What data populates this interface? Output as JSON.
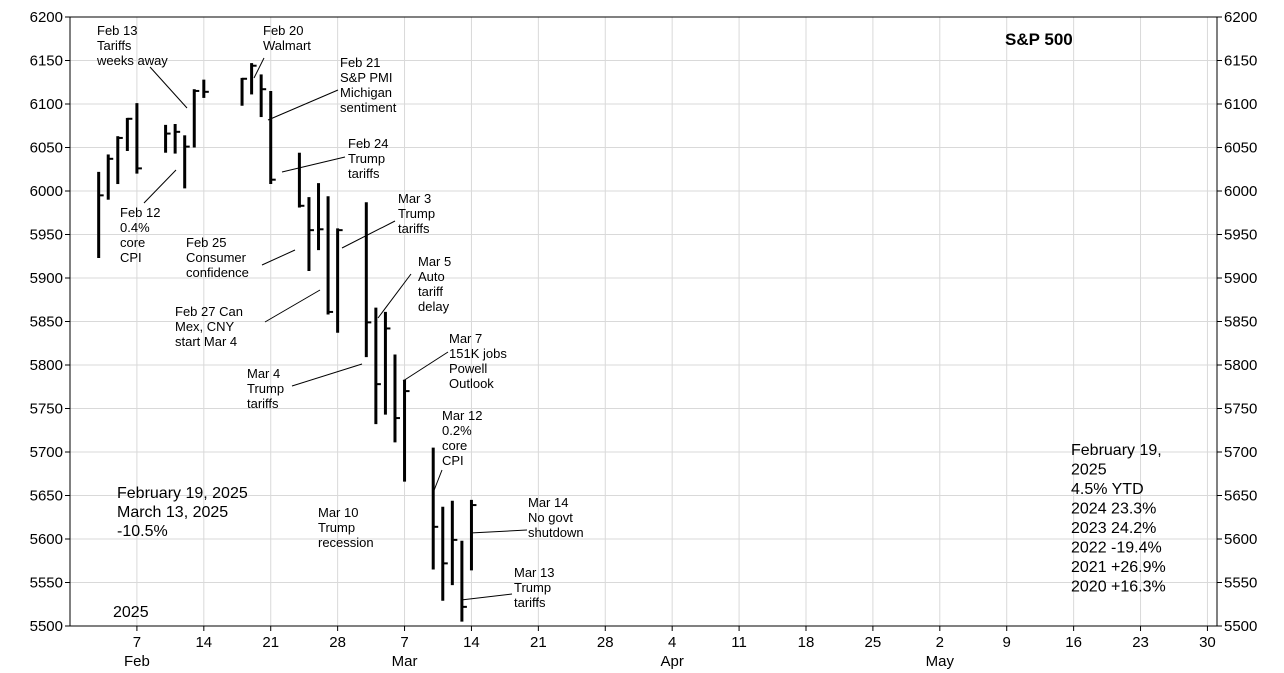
{
  "chart_data": {
    "type": "bar",
    "ohlc_style": "high-low-close",
    "title": "S&P 500",
    "ylim": [
      5500,
      6200
    ],
    "y_ticks": [
      5500,
      5550,
      5600,
      5650,
      5700,
      5750,
      5800,
      5850,
      5900,
      5950,
      6000,
      6050,
      6100,
      6150,
      6200
    ],
    "x_ticks": [
      {
        "day": 7,
        "label": "7",
        "month_label": "Feb"
      },
      {
        "day": 14,
        "label": "14",
        "month_label": ""
      },
      {
        "day": 21,
        "label": "21",
        "month_label": ""
      },
      {
        "day": 28,
        "label": "28",
        "month_label": ""
      },
      {
        "day": 35,
        "label": "7",
        "month_label": "Mar"
      },
      {
        "day": 42,
        "label": "14",
        "month_label": ""
      },
      {
        "day": 49,
        "label": "21",
        "month_label": ""
      },
      {
        "day": 56,
        "label": "28",
        "month_label": ""
      },
      {
        "day": 63,
        "label": "4",
        "month_label": "Apr"
      },
      {
        "day": 70,
        "label": "11",
        "month_label": ""
      },
      {
        "day": 77,
        "label": "18",
        "month_label": ""
      },
      {
        "day": 84,
        "label": "25",
        "month_label": ""
      },
      {
        "day": 91,
        "label": "2",
        "month_label": "May"
      },
      {
        "day": 98,
        "label": "9",
        "month_label": ""
      },
      {
        "day": 105,
        "label": "16",
        "month_label": ""
      },
      {
        "day": 112,
        "label": "23",
        "month_label": ""
      },
      {
        "day": 119,
        "label": "30",
        "month_label": ""
      }
    ],
    "bars": [
      {
        "day": 3,
        "high": 6022,
        "low": 5923,
        "close": 5995
      },
      {
        "day": 4,
        "high": 6042,
        "low": 5990,
        "close": 6037
      },
      {
        "day": 5,
        "high": 6063,
        "low": 6008,
        "close": 6061
      },
      {
        "day": 6,
        "high": 6084,
        "low": 6046,
        "close": 6083
      },
      {
        "day": 7,
        "high": 6101,
        "low": 6020,
        "close": 6026
      },
      {
        "day": 10,
        "high": 6076,
        "low": 6044,
        "close": 6066
      },
      {
        "day": 11,
        "high": 6077,
        "low": 6043,
        "close": 6068
      },
      {
        "day": 12,
        "high": 6064,
        "low": 6003,
        "close": 6051
      },
      {
        "day": 13,
        "high": 6117,
        "low": 6050,
        "close": 6115
      },
      {
        "day": 14,
        "high": 6128,
        "low": 6107,
        "close": 6114
      },
      {
        "day": 18,
        "high": 6130,
        "low": 6098,
        "close": 6129
      },
      {
        "day": 19,
        "high": 6147,
        "low": 6111,
        "close": 6144
      },
      {
        "day": 20,
        "high": 6134,
        "low": 6085,
        "close": 6117
      },
      {
        "day": 21,
        "high": 6115,
        "low": 6008,
        "close": 6013
      },
      {
        "day": 24,
        "high": 6044,
        "low": 5981,
        "close": 5983
      },
      {
        "day": 25,
        "high": 5993,
        "low": 5908,
        "close": 5955
      },
      {
        "day": 26,
        "high": 6009,
        "low": 5932,
        "close": 5956
      },
      {
        "day": 27,
        "high": 5994,
        "low": 5858,
        "close": 5861
      },
      {
        "day": 28,
        "high": 5957,
        "low": 5837,
        "close": 5955
      },
      {
        "day": 31,
        "high": 5987,
        "low": 5809,
        "close": 5849
      },
      {
        "day": 32,
        "high": 5866,
        "low": 5732,
        "close": 5778
      },
      {
        "day": 33,
        "high": 5861,
        "low": 5743,
        "close": 5842
      },
      {
        "day": 34,
        "high": 5812,
        "low": 5711,
        "close": 5739
      },
      {
        "day": 35,
        "high": 5783,
        "low": 5666,
        "close": 5770
      },
      {
        "day": 38,
        "high": 5705,
        "low": 5565,
        "close": 5614
      },
      {
        "day": 39,
        "high": 5637,
        "low": 5529,
        "close": 5572
      },
      {
        "day": 40,
        "high": 5644,
        "low": 5547,
        "close": 5599
      },
      {
        "day": 41,
        "high": 5598,
        "low": 5505,
        "close": 5522
      },
      {
        "day": 42,
        "high": 5645,
        "low": 5564,
        "close": 5639
      }
    ],
    "annotations": [
      {
        "id": "feb13",
        "lines": [
          "Feb 13",
          "Tariffs",
          "weeks away"
        ]
      },
      {
        "id": "feb20",
        "lines": [
          "Feb 20",
          "Walmart"
        ]
      },
      {
        "id": "feb21",
        "lines": [
          "Feb 21",
          "S&P PMI",
          "Michigan",
          "sentiment"
        ]
      },
      {
        "id": "feb24",
        "lines": [
          "Feb 24",
          "Trump",
          "tariffs"
        ]
      },
      {
        "id": "feb12",
        "lines": [
          "Feb 12",
          "0.4%",
          "core",
          "CPI"
        ]
      },
      {
        "id": "feb25",
        "lines": [
          "Feb 25",
          "Consumer",
          "confidence"
        ]
      },
      {
        "id": "mar3",
        "lines": [
          "Mar 3",
          "Trump",
          "tariffs"
        ]
      },
      {
        "id": "mar5",
        "lines": [
          "Mar 5",
          "Auto",
          "tariff",
          "delay"
        ]
      },
      {
        "id": "feb27",
        "lines": [
          "Feb 27 Can",
          "Mex, CNY",
          "start Mar 4"
        ]
      },
      {
        "id": "mar7",
        "lines": [
          "Mar 7",
          "151K jobs",
          "Powell",
          "Outlook"
        ]
      },
      {
        "id": "mar4",
        "lines": [
          "Mar 4",
          "Trump",
          "tariffs"
        ]
      },
      {
        "id": "mar12",
        "lines": [
          "Mar 12",
          "0.2%",
          "core",
          "CPI"
        ]
      },
      {
        "id": "mar10",
        "lines": [
          "Mar 10",
          "Trump",
          "recession"
        ]
      },
      {
        "id": "mar14",
        "lines": [
          "Mar 14",
          "No govt",
          "shutdown"
        ]
      },
      {
        "id": "mar13",
        "lines": [
          "Mar 13",
          "Trump",
          "tariffs"
        ]
      }
    ],
    "drawdown_box": [
      "February 19, 2025",
      "March 13, 2025",
      "-10.5%"
    ],
    "year_label": "2025",
    "returns_box": [
      "February 19,",
      "2025",
      "4.5% YTD",
      "2024   23.3%",
      "2023   24.2%",
      "2022 -19.4%",
      "2021 +26.9%",
      "2020 +16.3%"
    ]
  }
}
